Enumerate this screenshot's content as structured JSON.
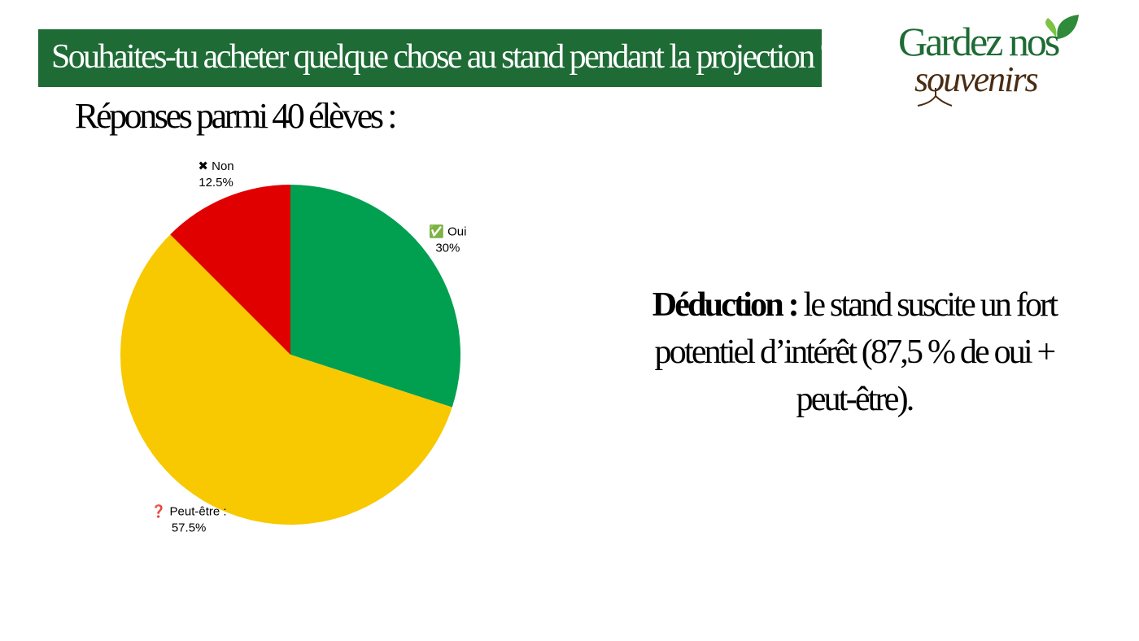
{
  "title": "Souhaites-tu acheter quelque chose au stand pendant la projection ?",
  "subtitle": "Réponses parmi 40 élèves :",
  "logo": {
    "line1": "Gardez nos",
    "line2": "souvenirs"
  },
  "deduction": {
    "label": "Déduction :",
    "text": "le stand suscite un fort potentiel d’intérêt (87,5 % de oui + peut-être)."
  },
  "chart_data": {
    "type": "pie",
    "categories": [
      "✅ Oui",
      "❓ Peut-être :",
      "✖ Non"
    ],
    "values": [
      30,
      57.5,
      12.5
    ],
    "value_labels": [
      "30%",
      "57.5%",
      "12.5%"
    ],
    "colors": [
      "#00a050",
      "#f8c800",
      "#e00000"
    ]
  }
}
